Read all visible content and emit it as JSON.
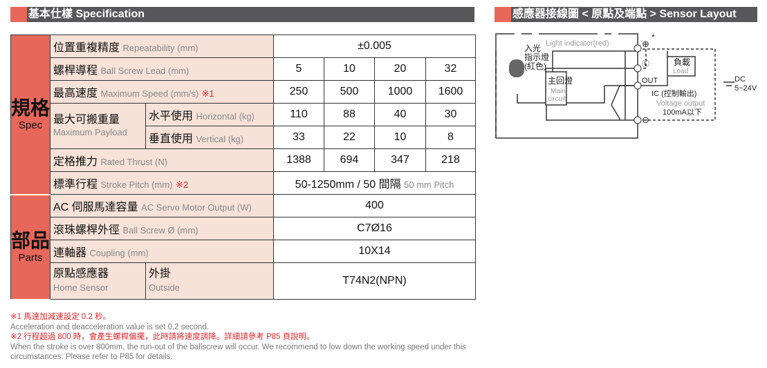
{
  "spec_header": "基本仕樣 Specification",
  "sensor_header": "感應器接線圖 < 原點及端點 > Sensor Layout",
  "spec_group": {
    "zh": "規格",
    "en": "Spec"
  },
  "parts_group": {
    "zh": "部品",
    "en": "Parts"
  },
  "rows": {
    "repeat": {
      "zh": "位置重複精度",
      "en": "Repeatability (mm)",
      "value": "±0.005"
    },
    "lead": {
      "zh": "螺桿導程",
      "en": "Ball Screw Lead (mm)",
      "values": [
        "5",
        "10",
        "20",
        "32"
      ]
    },
    "speed": {
      "zh": "最高速度",
      "en": "Maximum Speed (mm/s)",
      "mark": "※1",
      "values": [
        "250",
        "500",
        "1000",
        "1600"
      ]
    },
    "payload": {
      "zh": "最大可搬重量",
      "en": "Maximum Payload",
      "h": {
        "zh": "水平使用",
        "en": "Horizontal (kg)",
        "values": [
          "110",
          "88",
          "40",
          "30"
        ]
      },
      "v": {
        "zh": "垂直使用",
        "en": "Vertical (kg)",
        "values": [
          "33",
          "22",
          "10",
          "8"
        ]
      }
    },
    "thrust": {
      "zh": "定格推力",
      "en": "Rated Thrust (N)",
      "values": [
        "1388",
        "694",
        "347",
        "218"
      ]
    },
    "stroke": {
      "zh": "標準行程",
      "en": "Stroke Pitch (mm)",
      "mark": "※2",
      "value": "50-1250mm / 50 間隔",
      "value_en": "50 mm Pitch"
    },
    "motor": {
      "zh": "AC 伺服馬達容量",
      "en": "AC Servo Motor Output (W)",
      "value": "400"
    },
    "screw": {
      "zh": "滾珠螺桿外徑",
      "en": "Ball Screw Ø (mm)",
      "value": "C7Ø16"
    },
    "coupling": {
      "zh": "連軸器",
      "en": "Coupling (mm)",
      "value": "10X14"
    },
    "sensor": {
      "zh": "原點感應器",
      "en": "Home Sensor",
      "sub_zh": "外掛",
      "sub_en": "Outside",
      "value": "T74N2(NPN)"
    }
  },
  "notes": [
    "※1 馬達加減速設定 0.2 秒。",
    "Acceleration and deacceleration value is set 0.2 second.",
    "※2 行程超過 800 時，會產生螺桿偏擺，此時請將速度調降。詳細請參考 P85 頁說明。",
    "When the stroke is over 800mm, the run-out of the ballscrew will occur. We recommend to low down the working speed under this circumstances. Please refer to P85 for details."
  ],
  "diagram": {
    "light_indicator": "Light indicator(red)",
    "led_zh1": "入光",
    "led_zh2": "指示燈",
    "led_zh3": "(紅色)",
    "main_zh": "主回燈",
    "main_en1": "Main",
    "main_en2": "circuit",
    "load_zh": "負載",
    "load_en": "Load",
    "out": "OUT",
    "ic": "IC (控制輸出)",
    "voltage": "Voltage output",
    "current": "100mA以下",
    "dc": "DC",
    "dc_v": "5~24V",
    "plus": "⊕",
    "star": "*",
    "l": "Ⓛ",
    "minus": "⊖"
  },
  "colors": {
    "accent": "#e8675b",
    "header_bg": "#58585a",
    "label_bg": "#f6e2d8",
    "note_red": "#e0262b"
  }
}
